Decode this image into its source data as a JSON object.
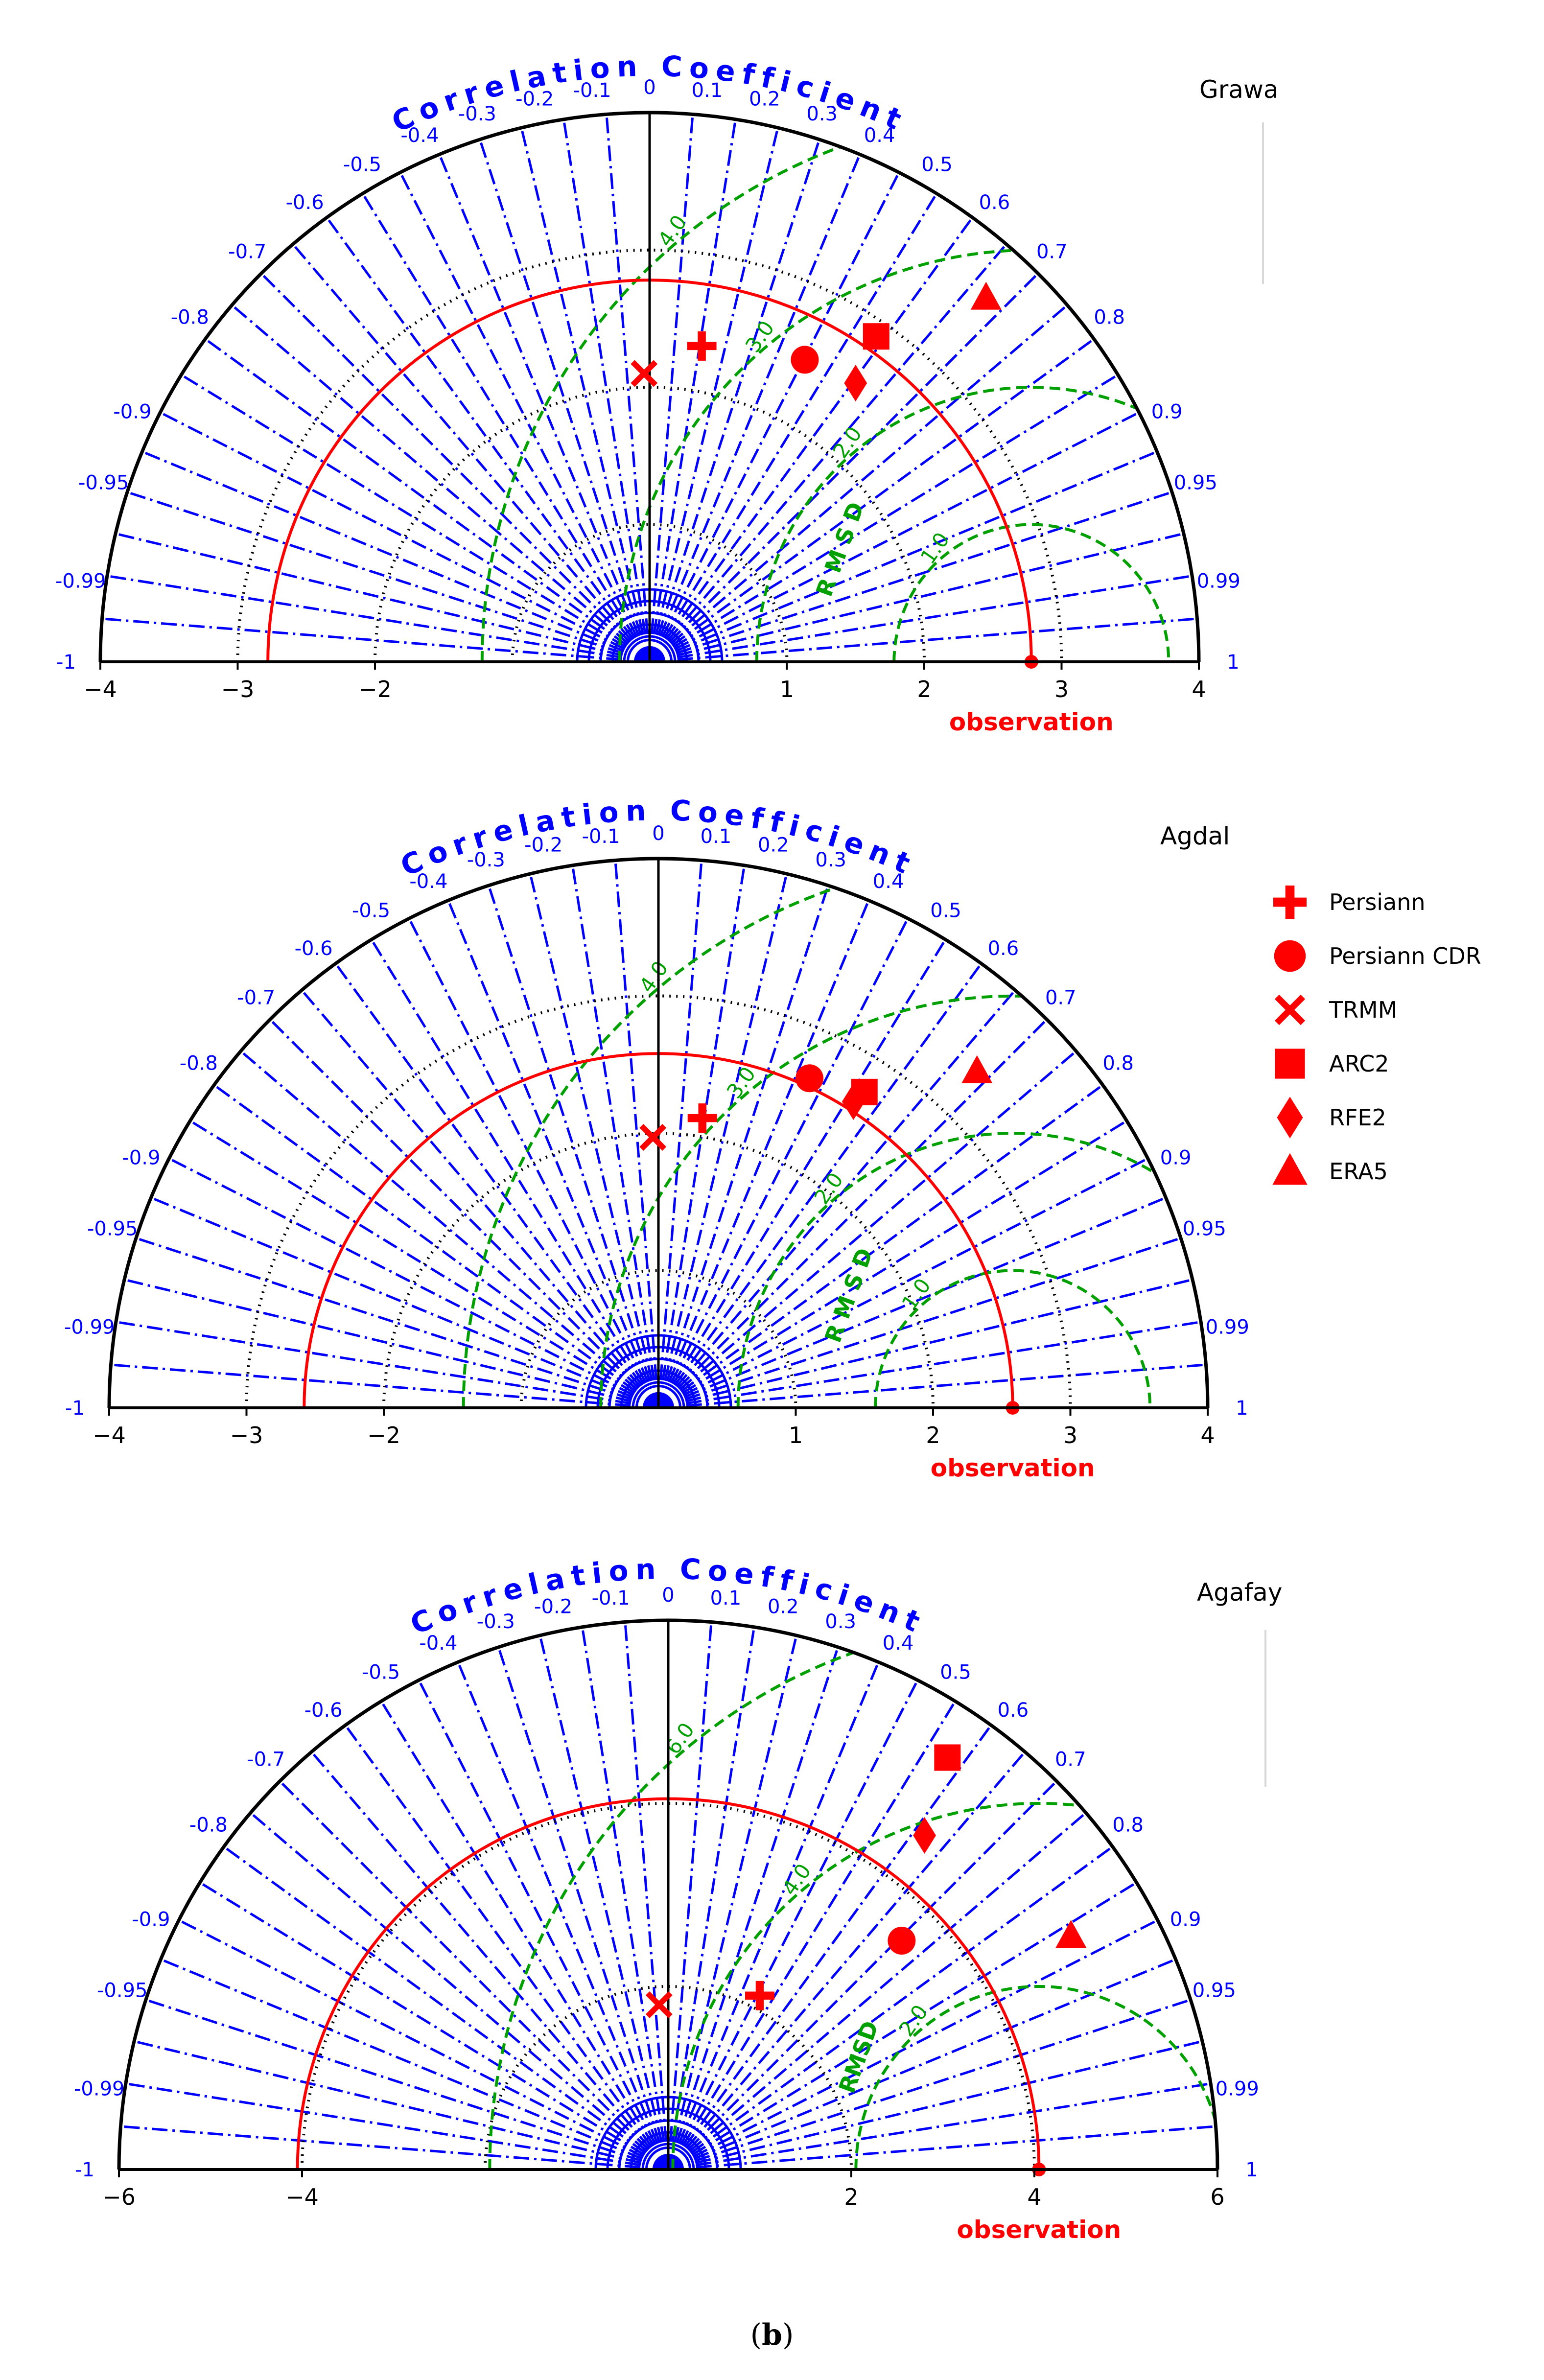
{
  "caption": {
    "open": "(",
    "label": "b",
    "close": ")"
  },
  "legend": {
    "items": [
      {
        "label": "Persiann",
        "marker": "plus"
      },
      {
        "label": "Persiann CDR",
        "marker": "circle"
      },
      {
        "label": "TRMM",
        "marker": "x"
      },
      {
        "label": "ARC2",
        "marker": "square"
      },
      {
        "label": "RFE2",
        "marker": "diamond"
      },
      {
        "label": "ERA5",
        "marker": "triangle"
      }
    ]
  },
  "colors": {
    "model": "#ff0000",
    "corr": "#0000ff",
    "rmsd": "#00a000",
    "std": "#000000",
    "axis": "#000000"
  },
  "chart_data": [
    {
      "type": "taylor",
      "title": "Grawa",
      "arc_title": "Correlation Coefficient",
      "xlim": [
        -4,
        4
      ],
      "x_ticks": [
        -4,
        -3,
        -2,
        1,
        2,
        3,
        4
      ],
      "corr_ticks": [
        "-1",
        "-0.99",
        "-0.95",
        "-0.9",
        "-0.8",
        "-0.7",
        "-0.6",
        "-0.5",
        "-0.4",
        "-0.3",
        "-0.2",
        "-0.1",
        "0",
        "0.1",
        "0.2",
        "0.3",
        "0.4",
        "0.5",
        "0.6",
        "0.7",
        "0.8",
        "0.9",
        "0.95",
        "0.99",
        "1"
      ],
      "std_rings": [
        1,
        2,
        3
      ],
      "ref_std": 2.78,
      "rmsd_rings": [
        1.0,
        2.0,
        3.0,
        4.0
      ],
      "rmsd_labels": [
        "1.0",
        "2.0",
        "3.0",
        "4.0"
      ],
      "rmsd_axis_label": "R M S D",
      "obs_label": "observation",
      "points": [
        {
          "model": "Persiann",
          "x": 0.38,
          "y": 2.3
        },
        {
          "model": "Persiann CDR",
          "x": 1.13,
          "y": 2.2
        },
        {
          "model": "TRMM",
          "x": -0.04,
          "y": 2.1
        },
        {
          "model": "ARC2",
          "x": 1.65,
          "y": 2.37
        },
        {
          "model": "RFE2",
          "x": 1.5,
          "y": 2.03
        },
        {
          "model": "ERA5",
          "x": 2.45,
          "y": 2.65
        }
      ]
    },
    {
      "type": "taylor",
      "title": "Agdal",
      "arc_title": "Correlation Coefficient",
      "xlim": [
        -4,
        4
      ],
      "x_ticks": [
        -4,
        -3,
        -2,
        1,
        2,
        3,
        4
      ],
      "corr_ticks": [
        "-1",
        "-0.99",
        "-0.95",
        "-0.9",
        "-0.8",
        "-0.7",
        "-0.6",
        "-0.5",
        "-0.4",
        "-0.3",
        "-0.2",
        "-0.1",
        "0",
        "0.1",
        "0.2",
        "0.3",
        "0.4",
        "0.5",
        "0.6",
        "0.7",
        "0.8",
        "0.9",
        "0.95",
        "0.99",
        "1"
      ],
      "std_rings": [
        1,
        2,
        3
      ],
      "ref_std": 2.58,
      "rmsd_rings": [
        1.0,
        2.0,
        3.0,
        4.0
      ],
      "rmsd_labels": [
        "1.0",
        "2.0",
        "3.0",
        "4.0"
      ],
      "rmsd_axis_label": "R M S D",
      "obs_label": "observation",
      "points": [
        {
          "model": "Persiann",
          "x": 0.32,
          "y": 2.11
        },
        {
          "model": "Persiann CDR",
          "x": 1.1,
          "y": 2.4
        },
        {
          "model": "TRMM",
          "x": -0.04,
          "y": 1.97
        },
        {
          "model": "ARC2",
          "x": 1.5,
          "y": 2.3
        },
        {
          "model": "RFE2",
          "x": 1.42,
          "y": 2.23
        },
        {
          "model": "ERA5",
          "x": 2.32,
          "y": 2.45
        }
      ]
    },
    {
      "type": "taylor",
      "title": "Agafay",
      "arc_title": "Correlation Coefficient",
      "xlim": [
        -6,
        6
      ],
      "x_ticks": [
        -6,
        -4,
        2,
        4,
        6
      ],
      "corr_ticks": [
        "-1",
        "-0.99",
        "-0.95",
        "-0.9",
        "-0.8",
        "-0.7",
        "-0.6",
        "-0.5",
        "-0.4",
        "-0.3",
        "-0.2",
        "-0.1",
        "0",
        "0.1",
        "0.2",
        "0.3",
        "0.4",
        "0.5",
        "0.6",
        "0.7",
        "0.8",
        "0.9",
        "0.95",
        "0.99",
        "1"
      ],
      "std_rings": [
        2,
        4
      ],
      "ref_std": 4.05,
      "rmsd_rings": [
        2.0,
        4.0,
        6.0
      ],
      "rmsd_labels": [
        "2.0",
        "4.0",
        "6.0"
      ],
      "rmsd_axis_label": "RMSD",
      "obs_label": "observation",
      "points": [
        {
          "model": "Persiann",
          "x": 1.0,
          "y": 1.9
        },
        {
          "model": "Persiann CDR",
          "x": 2.55,
          "y": 2.5
        },
        {
          "model": "TRMM",
          "x": -0.1,
          "y": 1.8
        },
        {
          "model": "ARC2",
          "x": 3.05,
          "y": 4.5
        },
        {
          "model": "RFE2",
          "x": 2.8,
          "y": 3.65
        },
        {
          "model": "ERA5",
          "x": 4.4,
          "y": 2.55
        }
      ]
    }
  ]
}
